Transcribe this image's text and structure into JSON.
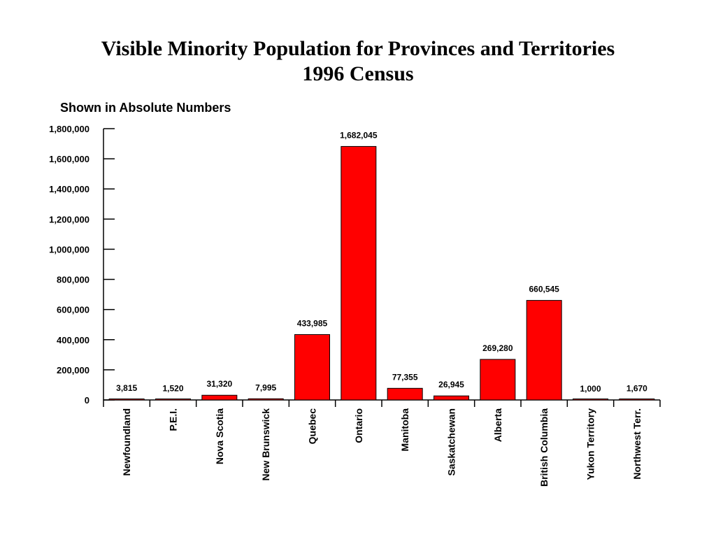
{
  "title_line1": "Visible Minority Population for Provinces and  Territories",
  "title_line2": "1996 Census",
  "subtitle": "Shown in Absolute Numbers",
  "chart_data": {
    "type": "bar",
    "title": "Visible Minority Population for Provinces and  Territories 1996 Census",
    "subtitle": "Shown in Absolute Numbers",
    "categories": [
      "Newfoundland",
      "P.E.I.",
      "Nova Scotia",
      "New Brunswick",
      "Quebec",
      "Ontario",
      "Manitoba",
      "Saskatchewan",
      "Alberta",
      "British Columbia",
      "Yukon Territory",
      "Northwest Terr."
    ],
    "values": [
      3815,
      1520,
      31320,
      7995,
      433985,
      1682045,
      77355,
      26945,
      269280,
      660545,
      1000,
      1670
    ],
    "data_labels": [
      "3,815",
      "1,520",
      "31,320",
      "7,995",
      "433,985",
      "1,682,045",
      "77,355",
      "26,945",
      "269,280",
      "660,545",
      "1,000",
      "1,670"
    ],
    "y_ticks": [
      0,
      200000,
      400000,
      600000,
      800000,
      1000000,
      1200000,
      1400000,
      1600000,
      1800000
    ],
    "y_tick_labels": [
      "0",
      "200,000",
      "400,000",
      "600,000",
      "800,000",
      "1,000,000",
      "1,200,000",
      "1,400,000",
      "1,600,000",
      "1,800,000"
    ],
    "ylim": [
      0,
      1800000
    ],
    "grid": false,
    "legend": "none",
    "bar_color": "#FF0000",
    "bar_outline": "#000000",
    "xlabel": "",
    "ylabel": ""
  }
}
